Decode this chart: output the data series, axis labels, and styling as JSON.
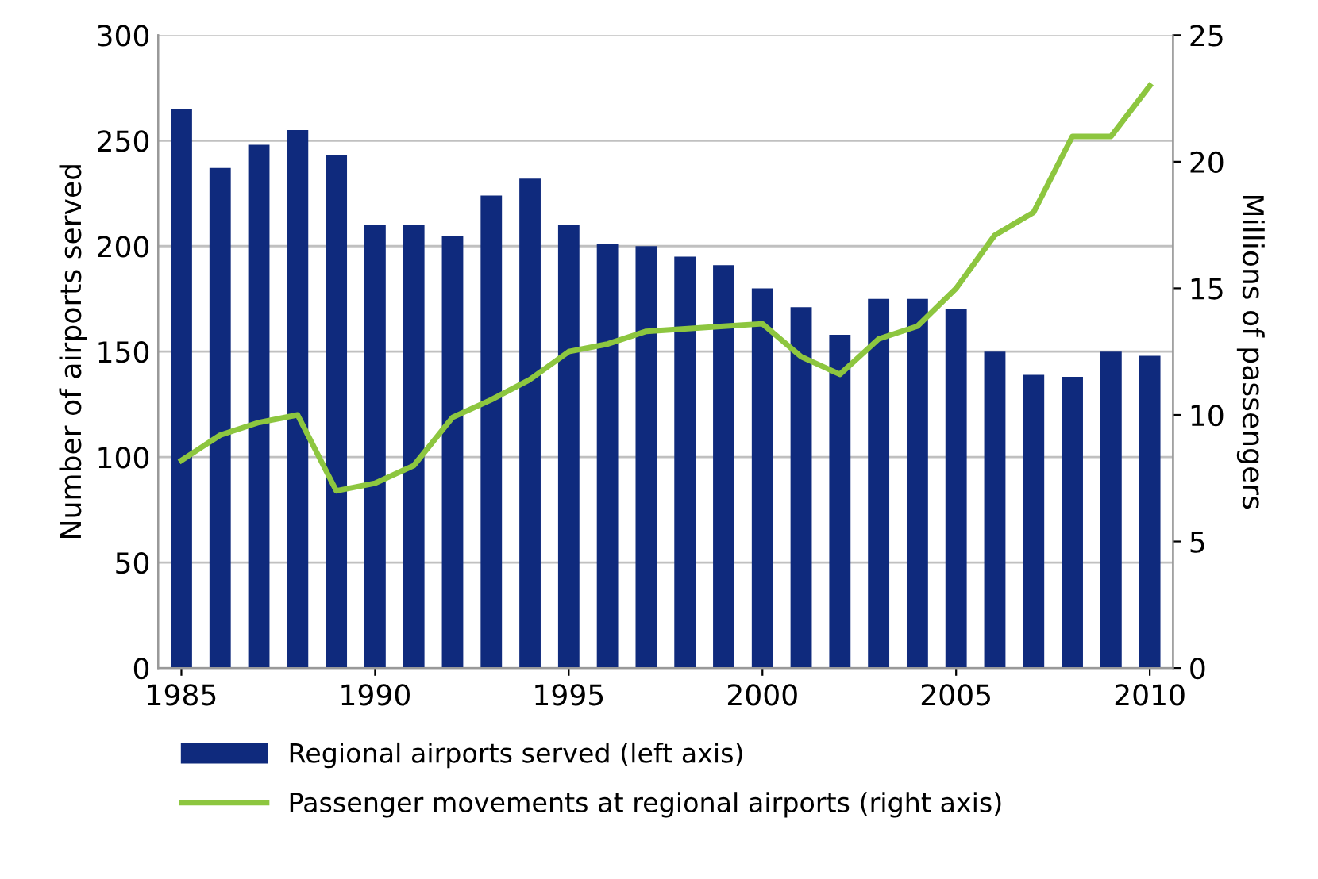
{
  "chart_data": {
    "type": "bar",
    "xlabel": null,
    "ylabel": "Number of airports served",
    "y2label": "Millions of passengers",
    "x": [
      1985,
      1986,
      1987,
      1988,
      1989,
      1990,
      1991,
      1992,
      1993,
      1994,
      1995,
      1996,
      1997,
      1998,
      1999,
      2000,
      2001,
      2002,
      2003,
      2004,
      2005,
      2006,
      2007,
      2008,
      2009,
      2010
    ],
    "series": [
      {
        "name": "Regional airports served (left axis)",
        "color": "#0f2a7d",
        "values": [
          265,
          237,
          248,
          255,
          243,
          210,
          210,
          205,
          224,
          232,
          210,
          201,
          200,
          195,
          191,
          180,
          171,
          158,
          175,
          175,
          170,
          150,
          139,
          138,
          150,
          148
        ]
      },
      {
        "name": "Passenger movements at regional airports (right axis)",
        "type": "line",
        "axis": "y2",
        "color": "#8dc63f",
        "values": [
          8.2,
          9.2,
          9.7,
          10,
          7,
          7.3,
          8,
          9.9,
          10.6,
          11.4,
          12.5,
          12.8,
          13.3,
          13.4,
          13.5,
          13.6,
          12.3,
          11.6,
          13,
          13.5,
          15,
          17.1,
          18,
          21,
          21,
          23
        ]
      }
    ],
    "xlim": [
      1984.4,
      2010.6
    ],
    "xticks": [
      1985,
      1990,
      1995,
      2000,
      2005,
      2010
    ],
    "ylim": [
      0,
      300
    ],
    "yticks": [
      0,
      50,
      100,
      150,
      200,
      250,
      300
    ],
    "y2lim": [
      0,
      25
    ],
    "y2ticks": [
      0,
      5,
      10,
      15,
      20,
      25
    ],
    "grid": "y",
    "legend": "bottom",
    "marker": "none",
    "line_style": "solid"
  }
}
